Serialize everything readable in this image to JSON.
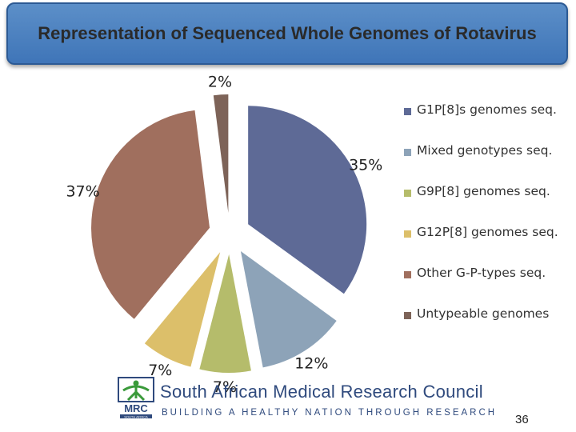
{
  "slide": {
    "title": "Representation of Sequenced Whole Genomes of Rotavirus",
    "page_number": "36"
  },
  "footer": {
    "organization": "South African Medical Research Council",
    "tagline": "BUILDING A HEALTHY NATION THROUGH RESEARCH",
    "logo_text": "MRC",
    "logo_subtext": "SOUTH AFRICA"
  },
  "chart_data": {
    "type": "pie",
    "style": "exploded",
    "start_angle_deg": 0,
    "direction": "clockwise",
    "legend_position": "right",
    "slices": [
      {
        "label": "G1P[8]s genomes seq.",
        "value": 35,
        "display": "35%",
        "color": "#5e6a96"
      },
      {
        "label": "Mixed genotypes seq.",
        "value": 12,
        "display": "12%",
        "color": "#8da3b8"
      },
      {
        "label": "G9P[8] genomes seq.",
        "value": 7,
        "display": "7%",
        "color": "#b5bc6b"
      },
      {
        "label": "G12P[8] genomes seq.",
        "value": 7,
        "display": "7%",
        "color": "#dcbf6a"
      },
      {
        "label": "Other G-P-types seq.",
        "value": 37,
        "display": "37%",
        "color": "#a06f5e"
      },
      {
        "label": "Untypeable genomes",
        "value": 2,
        "display": "2%",
        "color": "#7d6358"
      }
    ]
  }
}
